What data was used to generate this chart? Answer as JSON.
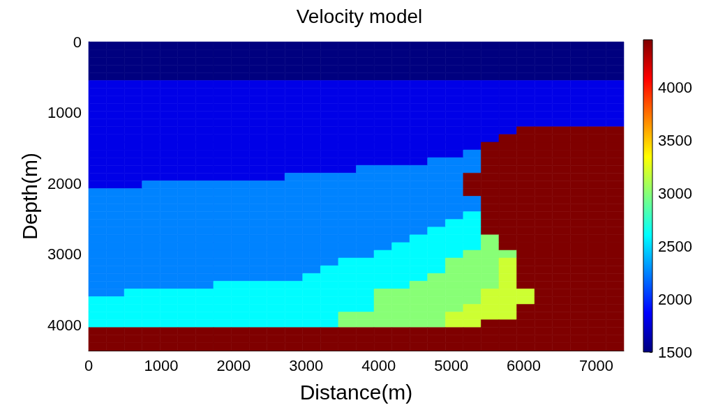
{
  "chart_data": {
    "type": "heatmap",
    "title": "Velocity model",
    "xlabel": "Distance(m)",
    "ylabel": "Depth(m)",
    "xlim": [
      0,
      7380
    ],
    "xticks": [
      0,
      1000,
      2000,
      3000,
      4000,
      5000,
      6000,
      7000
    ],
    "ylim": [
      4360,
      0
    ],
    "yticks": [
      0,
      1000,
      2000,
      3000,
      4000
    ],
    "clim": [
      1500,
      4450
    ],
    "cticks": [
      1500,
      2000,
      2500,
      3000,
      3500,
      4000
    ],
    "cells": [
      [
        1500,
        1500,
        1500,
        1500,
        1500,
        1500,
        1500,
        1500,
        1500,
        1500,
        1500,
        1500,
        1500,
        1500,
        1500,
        1500,
        1500,
        1500,
        1500,
        1500,
        1500,
        1500,
        1500,
        1500,
        1500,
        1500,
        1500,
        1500,
        1500,
        1500
      ],
      [
        1500,
        1500,
        1500,
        1500,
        1500,
        1500,
        1500,
        1500,
        1500,
        1500,
        1500,
        1500,
        1500,
        1500,
        1500,
        1500,
        1500,
        1500,
        1500,
        1500,
        1500,
        1500,
        1500,
        1500,
        1500,
        1500,
        1500,
        1500,
        1500,
        1500
      ],
      [
        1500,
        1500,
        1500,
        1500,
        1500,
        1500,
        1500,
        1500,
        1500,
        1500,
        1500,
        1500,
        1500,
        1500,
        1500,
        1500,
        1500,
        1500,
        1500,
        1500,
        1500,
        1500,
        1500,
        1500,
        1500,
        1500,
        1500,
        1500,
        1500,
        1500
      ],
      [
        1500,
        1500,
        1500,
        1500,
        1500,
        1500,
        1500,
        1500,
        1500,
        1500,
        1500,
        1500,
        1500,
        1500,
        1500,
        1500,
        1500,
        1500,
        1500,
        1500,
        1500,
        1500,
        1500,
        1500,
        1500,
        1500,
        1500,
        1500,
        1500,
        1500
      ],
      [
        1500,
        1500,
        1500,
        1500,
        1500,
        1500,
        1500,
        1500,
        1500,
        1500,
        1500,
        1500,
        1500,
        1500,
        1500,
        1500,
        1500,
        1500,
        1500,
        1500,
        1500,
        1500,
        1500,
        1500,
        1500,
        1500,
        1500,
        1500,
        1500,
        1500
      ],
      [
        1800,
        1800,
        1800,
        1800,
        1800,
        1800,
        1800,
        1800,
        1800,
        1800,
        1800,
        1800,
        1800,
        1800,
        1800,
        1800,
        1800,
        1800,
        1800,
        1800,
        1800,
        1800,
        1800,
        1800,
        1800,
        1800,
        1800,
        1800,
        1800,
        1800
      ],
      [
        1800,
        1800,
        1800,
        1800,
        1800,
        1800,
        1800,
        1800,
        1800,
        1800,
        1800,
        1800,
        1800,
        1800,
        1800,
        1800,
        1800,
        1800,
        1800,
        1800,
        1800,
        1800,
        1800,
        1800,
        1800,
        1800,
        1800,
        1800,
        1800,
        1800
      ],
      [
        1800,
        1800,
        1800,
        1800,
        1800,
        1800,
        1800,
        1800,
        1800,
        1800,
        1800,
        1800,
        1800,
        1800,
        1800,
        1800,
        1800,
        1800,
        1800,
        1800,
        1800,
        1800,
        1800,
        1800,
        1800,
        1800,
        1800,
        1800,
        1800,
        1800
      ],
      [
        1800,
        1800,
        1800,
        1800,
        1800,
        1800,
        1800,
        1800,
        1800,
        1800,
        1800,
        1800,
        1800,
        1800,
        1800,
        1800,
        1800,
        1800,
        1800,
        1800,
        1800,
        1800,
        1800,
        1800,
        1800,
        1800,
        1800,
        1800,
        1800,
        1800
      ],
      [
        1800,
        1800,
        1800,
        1800,
        1800,
        1800,
        1800,
        1800,
        1800,
        1800,
        1800,
        1800,
        1800,
        1800,
        1800,
        1800,
        1800,
        1800,
        1800,
        1800,
        1800,
        1800,
        1800,
        1800,
        1800,
        1800,
        1800,
        1800,
        1800,
        1800
      ],
      [
        1800,
        1800,
        1800,
        1800,
        1800,
        1800,
        1800,
        1800,
        1800,
        1800,
        1800,
        1800,
        1800,
        1800,
        1800,
        1800,
        1800,
        1800,
        1800,
        1800,
        1800,
        1800,
        1800,
        1800,
        1800,
        1800,
        1800,
        1800,
        1800,
        1800
      ],
      [
        1800,
        1800,
        1800,
        1800,
        1800,
        1800,
        1800,
        1800,
        1800,
        1800,
        1800,
        1800,
        1800,
        1800,
        1800,
        1800,
        1800,
        1800,
        1800,
        1800,
        1800,
        1800,
        1800,
        1800,
        4450,
        4450,
        4450,
        4450,
        4450,
        4450
      ],
      [
        1800,
        1800,
        1800,
        1800,
        1800,
        1800,
        1800,
        1800,
        1800,
        1800,
        1800,
        1800,
        1800,
        1800,
        1800,
        1800,
        1800,
        1800,
        1800,
        1800,
        1800,
        1800,
        1800,
        4450,
        4450,
        4450,
        4450,
        4450,
        4450,
        4450
      ],
      [
        1800,
        1800,
        1800,
        1800,
        1800,
        1800,
        1800,
        1800,
        1800,
        1800,
        1800,
        1800,
        1800,
        1800,
        1800,
        1800,
        1800,
        1800,
        1800,
        1800,
        1800,
        1800,
        4450,
        4450,
        4450,
        4450,
        4450,
        4450,
        4450,
        4450
      ],
      [
        1800,
        1800,
        1800,
        1800,
        1800,
        1800,
        1800,
        1800,
        1800,
        1800,
        1800,
        1800,
        1800,
        1800,
        1800,
        1800,
        1800,
        1800,
        1800,
        1800,
        1800,
        2250,
        4450,
        4450,
        4450,
        4450,
        4450,
        4450,
        4450,
        4450
      ],
      [
        1800,
        1800,
        1800,
        1800,
        1800,
        1800,
        1800,
        1800,
        1800,
        1800,
        1800,
        1800,
        1800,
        1800,
        1800,
        1800,
        1800,
        1800,
        1800,
        2250,
        2250,
        2250,
        4450,
        4450,
        4450,
        4450,
        4450,
        4450,
        4450,
        4450
      ],
      [
        1800,
        1800,
        1800,
        1800,
        1800,
        1800,
        1800,
        1800,
        1800,
        1800,
        1800,
        1800,
        1800,
        1800,
        1800,
        2250,
        2250,
        2250,
        2250,
        2250,
        2250,
        2250,
        4450,
        4450,
        4450,
        4450,
        4450,
        4450,
        4450,
        4450
      ],
      [
        1800,
        1800,
        1800,
        1800,
        1800,
        1800,
        1800,
        1800,
        1800,
        1800,
        1800,
        2250,
        2250,
        2250,
        2250,
        2250,
        2250,
        2250,
        2250,
        2250,
        2250,
        4450,
        4450,
        4450,
        4450,
        4450,
        4450,
        4450,
        4450,
        4450
      ],
      [
        1800,
        1800,
        1800,
        2250,
        2250,
        2250,
        2250,
        2250,
        2250,
        2250,
        2250,
        2250,
        2250,
        2250,
        2250,
        2250,
        2250,
        2250,
        2250,
        2250,
        2250,
        4450,
        4450,
        4450,
        4450,
        4450,
        4450,
        4450,
        4450,
        4450
      ],
      [
        2250,
        2250,
        2250,
        2250,
        2250,
        2250,
        2250,
        2250,
        2250,
        2250,
        2250,
        2250,
        2250,
        2250,
        2250,
        2250,
        2250,
        2250,
        2250,
        2250,
        2250,
        4450,
        4450,
        4450,
        4450,
        4450,
        4450,
        4450,
        4450,
        4450
      ],
      [
        2250,
        2250,
        2250,
        2250,
        2250,
        2250,
        2250,
        2250,
        2250,
        2250,
        2250,
        2250,
        2250,
        2250,
        2250,
        2250,
        2250,
        2250,
        2250,
        2250,
        2250,
        2250,
        4450,
        4450,
        4450,
        4450,
        4450,
        4450,
        4450,
        4450
      ],
      [
        2250,
        2250,
        2250,
        2250,
        2250,
        2250,
        2250,
        2250,
        2250,
        2250,
        2250,
        2250,
        2250,
        2250,
        2250,
        2250,
        2250,
        2250,
        2250,
        2250,
        2250,
        2250,
        4450,
        4450,
        4450,
        4450,
        4450,
        4450,
        4450,
        4450
      ],
      [
        2250,
        2250,
        2250,
        2250,
        2250,
        2250,
        2250,
        2250,
        2250,
        2250,
        2250,
        2250,
        2250,
        2250,
        2250,
        2250,
        2250,
        2250,
        2250,
        2250,
        2250,
        2600,
        4450,
        4450,
        4450,
        4450,
        4450,
        4450,
        4450,
        4450
      ],
      [
        2250,
        2250,
        2250,
        2250,
        2250,
        2250,
        2250,
        2250,
        2250,
        2250,
        2250,
        2250,
        2250,
        2250,
        2250,
        2250,
        2250,
        2250,
        2250,
        2250,
        2600,
        2600,
        4450,
        4450,
        4450,
        4450,
        4450,
        4450,
        4450,
        4450
      ],
      [
        2250,
        2250,
        2250,
        2250,
        2250,
        2250,
        2250,
        2250,
        2250,
        2250,
        2250,
        2250,
        2250,
        2250,
        2250,
        2250,
        2250,
        2250,
        2250,
        2600,
        2600,
        2600,
        4450,
        4450,
        4450,
        4450,
        4450,
        4450,
        4450,
        4450
      ],
      [
        2250,
        2250,
        2250,
        2250,
        2250,
        2250,
        2250,
        2250,
        2250,
        2250,
        2250,
        2250,
        2250,
        2250,
        2250,
        2250,
        2250,
        2250,
        2600,
        2600,
        2600,
        2600,
        3000,
        4450,
        4450,
        4450,
        4450,
        4450,
        4450,
        4450
      ],
      [
        2250,
        2250,
        2250,
        2250,
        2250,
        2250,
        2250,
        2250,
        2250,
        2250,
        2250,
        2250,
        2250,
        2250,
        2250,
        2250,
        2250,
        2600,
        2600,
        2600,
        2600,
        2600,
        3000,
        4450,
        4450,
        4450,
        4450,
        4450,
        4450,
        4450
      ],
      [
        2250,
        2250,
        2250,
        2250,
        2250,
        2250,
        2250,
        2250,
        2250,
        2250,
        2250,
        2250,
        2250,
        2250,
        2250,
        2250,
        2600,
        2600,
        2600,
        2600,
        2600,
        3000,
        3000,
        3000,
        4450,
        4450,
        4450,
        4450,
        4450,
        4450
      ],
      [
        2250,
        2250,
        2250,
        2250,
        2250,
        2250,
        2250,
        2250,
        2250,
        2250,
        2250,
        2250,
        2250,
        2250,
        2600,
        2600,
        2600,
        2600,
        2600,
        2600,
        3000,
        3000,
        3000,
        3200,
        4450,
        4450,
        4450,
        4450,
        4450,
        4450
      ],
      [
        2250,
        2250,
        2250,
        2250,
        2250,
        2250,
        2250,
        2250,
        2250,
        2250,
        2250,
        2250,
        2250,
        2600,
        2600,
        2600,
        2600,
        2600,
        2600,
        2600,
        3000,
        3000,
        3000,
        3200,
        4450,
        4450,
        4450,
        4450,
        4450,
        4450
      ],
      [
        2250,
        2250,
        2250,
        2250,
        2250,
        2250,
        2250,
        2250,
        2250,
        2250,
        2250,
        2250,
        2600,
        2600,
        2600,
        2600,
        2600,
        2600,
        2600,
        3000,
        3000,
        3000,
        3000,
        3200,
        4450,
        4450,
        4450,
        4450,
        4450,
        4450
      ],
      [
        2250,
        2250,
        2250,
        2250,
        2250,
        2250,
        2250,
        2600,
        2600,
        2600,
        2600,
        2600,
        2600,
        2600,
        2600,
        2600,
        2600,
        2600,
        3000,
        3000,
        3000,
        3000,
        3000,
        3200,
        4450,
        4450,
        4450,
        4450,
        4450,
        4450
      ],
      [
        2250,
        2250,
        2600,
        2600,
        2600,
        2600,
        2600,
        2600,
        2600,
        2600,
        2600,
        2600,
        2600,
        2600,
        2600,
        2600,
        3000,
        3000,
        3000,
        3000,
        3000,
        3000,
        3200,
        3200,
        3200,
        4450,
        4450,
        4450,
        4450,
        4450
      ],
      [
        2600,
        2600,
        2600,
        2600,
        2600,
        2600,
        2600,
        2600,
        2600,
        2600,
        2600,
        2600,
        2600,
        2600,
        2600,
        2600,
        3000,
        3000,
        3000,
        3000,
        3000,
        3000,
        3200,
        3200,
        3200,
        4450,
        4450,
        4450,
        4450,
        4450
      ],
      [
        2600,
        2600,
        2600,
        2600,
        2600,
        2600,
        2600,
        2600,
        2600,
        2600,
        2600,
        2600,
        2600,
        2600,
        2600,
        2600,
        3000,
        3000,
        3000,
        3000,
        3000,
        3200,
        3200,
        3200,
        4450,
        4450,
        4450,
        4450,
        4450,
        4450
      ],
      [
        2600,
        2600,
        2600,
        2600,
        2600,
        2600,
        2600,
        2600,
        2600,
        2600,
        2600,
        2600,
        2600,
        2600,
        3000,
        3000,
        3000,
        3000,
        3000,
        3000,
        3200,
        3200,
        3200,
        3200,
        4450,
        4450,
        4450,
        4450,
        4450,
        4450
      ],
      [
        2600,
        2600,
        2600,
        2600,
        2600,
        2600,
        2600,
        2600,
        2600,
        2600,
        2600,
        2600,
        2600,
        2600,
        3000,
        3000,
        3000,
        3000,
        3000,
        3000,
        3200,
        3200,
        4450,
        4450,
        4450,
        4450,
        4450,
        4450,
        4450,
        4450
      ],
      [
        4450,
        4450,
        4450,
        4450,
        4450,
        4450,
        4450,
        4450,
        4450,
        4450,
        4450,
        4450,
        4450,
        4450,
        4450,
        4450,
        4450,
        4450,
        4450,
        4450,
        4450,
        4450,
        4450,
        4450,
        4450,
        4450,
        4450,
        4450,
        4450,
        4450
      ],
      [
        4450,
        4450,
        4450,
        4450,
        4450,
        4450,
        4450,
        4450,
        4450,
        4450,
        4450,
        4450,
        4450,
        4450,
        4450,
        4450,
        4450,
        4450,
        4450,
        4450,
        4450,
        4450,
        4450,
        4450,
        4450,
        4450,
        4450,
        4450,
        4450,
        4450
      ],
      [
        4450,
        4450,
        4450,
        4450,
        4450,
        4450,
        4450,
        4450,
        4450,
        4450,
        4450,
        4450,
        4450,
        4450,
        4450,
        4450,
        4450,
        4450,
        4450,
        4450,
        4450,
        4450,
        4450,
        4450,
        4450,
        4450,
        4450,
        4450,
        4450,
        4450
      ]
    ]
  }
}
